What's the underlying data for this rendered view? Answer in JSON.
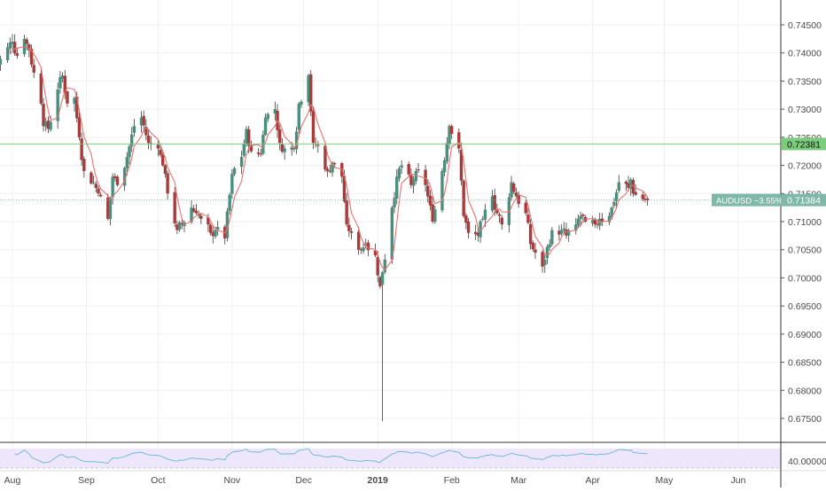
{
  "symbol": "AUDUSD",
  "colors": {
    "up": "#4a8f7e",
    "down": "#a93a3a",
    "ma": "#e9726f",
    "horizontal_line": "#7dcc7d",
    "current_price_line": "#7fb7a9",
    "rsi_line": "#66b7d6",
    "rsi_band": "#eee6fb",
    "grid": "#f0f0f0",
    "axis_text": "#4a4a4a"
  },
  "price_axis": {
    "labels": [
      "0.74500",
      "0.74000",
      "0.73500",
      "0.73000",
      "0.72500",
      "0.72000",
      "0.71500",
      "0.71000",
      "0.70500",
      "0.70000",
      "0.69500",
      "0.69000",
      "0.68500",
      "0.68000",
      "0.67500"
    ]
  },
  "horizontal_line": {
    "price": 0.72381,
    "label": "0.72381"
  },
  "current_price": {
    "price": 0.71384,
    "change_label": "AUDUSD −3.55%",
    "price_label": "0.71384"
  },
  "rsi": {
    "axis_label": "40.00000"
  },
  "time_axis": {
    "labels": [
      "Aug",
      "Sep",
      "Oct",
      "Nov",
      "Dec",
      "2019",
      "Feb",
      "Mar",
      "Apr",
      "May",
      "Jun"
    ],
    "bold_labels": [
      "2019"
    ]
  },
  "chart_data": {
    "type": "candlestick",
    "title": "",
    "symbol": "AUDUSD",
    "timeframe": "daily",
    "x_range": [
      "2018-08-01",
      "2019-06-10"
    ],
    "y_range": [
      0.6705,
      0.7485
    ],
    "month_ticks": [
      {
        "label": "Aug",
        "date": "2018-08-01"
      },
      {
        "label": "Sep",
        "date": "2018-09-01"
      },
      {
        "label": "Oct",
        "date": "2018-10-01"
      },
      {
        "label": "Nov",
        "date": "2018-11-01"
      },
      {
        "label": "Dec",
        "date": "2018-12-01"
      },
      {
        "label": "2019",
        "date": "2019-01-01"
      },
      {
        "label": "Feb",
        "date": "2019-02-01"
      },
      {
        "label": "Mar",
        "date": "2019-03-01"
      },
      {
        "label": "Apr",
        "date": "2019-04-01"
      },
      {
        "label": "May",
        "date": "2019-05-01"
      },
      {
        "label": "Jun",
        "date": "2019-06-01"
      }
    ],
    "close_path": [
      [
        "2018-07-24",
        0.74
      ],
      [
        "2018-07-26",
        0.738
      ],
      [
        "2018-07-30",
        0.741
      ],
      [
        "2018-08-01",
        0.742
      ],
      [
        "2018-08-03",
        0.7395
      ],
      [
        "2018-08-06",
        0.7425
      ],
      [
        "2018-08-08",
        0.7405
      ],
      [
        "2018-08-10",
        0.7365
      ],
      [
        "2018-08-13",
        0.731
      ],
      [
        "2018-08-14",
        0.727
      ],
      [
        "2018-08-16",
        0.7265
      ],
      [
        "2018-08-20",
        0.7335
      ],
      [
        "2018-08-22",
        0.736
      ],
      [
        "2018-08-24",
        0.731
      ],
      [
        "2018-08-27",
        0.732
      ],
      [
        "2018-08-29",
        0.725
      ],
      [
        "2018-08-31",
        0.719
      ],
      [
        "2018-09-04",
        0.717
      ],
      [
        "2018-09-06",
        0.715
      ],
      [
        "2018-09-10",
        0.7105
      ],
      [
        "2018-09-12",
        0.718
      ],
      [
        "2018-09-14",
        0.7165
      ],
      [
        "2018-09-18",
        0.7215
      ],
      [
        "2018-09-21",
        0.727
      ],
      [
        "2018-09-24",
        0.7285
      ],
      [
        "2018-09-27",
        0.724
      ],
      [
        "2018-10-01",
        0.723
      ],
      [
        "2018-10-03",
        0.72
      ],
      [
        "2018-10-05",
        0.715
      ],
      [
        "2018-10-09",
        0.7085
      ],
      [
        "2018-10-11",
        0.7095
      ],
      [
        "2018-10-15",
        0.7125
      ],
      [
        "2018-10-17",
        0.7115
      ],
      [
        "2018-10-19",
        0.7105
      ],
      [
        "2018-10-23",
        0.708
      ],
      [
        "2018-10-25",
        0.7085
      ],
      [
        "2018-10-29",
        0.707
      ],
      [
        "2018-11-01",
        0.7185
      ],
      [
        "2018-11-05",
        0.7215
      ],
      [
        "2018-11-07",
        0.7265
      ],
      [
        "2018-11-09",
        0.7225
      ],
      [
        "2018-11-13",
        0.722
      ],
      [
        "2018-11-15",
        0.7285
      ],
      [
        "2018-11-19",
        0.73
      ],
      [
        "2018-11-21",
        0.724
      ],
      [
        "2018-11-23",
        0.723
      ],
      [
        "2018-11-27",
        0.723
      ],
      [
        "2018-11-29",
        0.731
      ],
      [
        "2018-12-03",
        0.736
      ],
      [
        "2018-12-05",
        0.724
      ],
      [
        "2018-12-07",
        0.7235
      ],
      [
        "2018-12-11",
        0.719
      ],
      [
        "2018-12-13",
        0.7205
      ],
      [
        "2018-12-17",
        0.718
      ],
      [
        "2018-12-19",
        0.7095
      ],
      [
        "2018-12-21",
        0.708
      ],
      [
        "2018-12-24",
        0.705
      ],
      [
        "2018-12-27",
        0.706
      ],
      [
        "2018-12-31",
        0.704
      ],
      [
        "2019-01-02",
        0.6985
      ],
      [
        "2019-01-03",
        0.701
      ],
      [
        "2019-01-07",
        0.7125
      ],
      [
        "2019-01-09",
        0.718
      ],
      [
        "2019-01-11",
        0.72
      ],
      [
        "2019-01-15",
        0.7165
      ],
      [
        "2019-01-17",
        0.719
      ],
      [
        "2019-01-21",
        0.7165
      ],
      [
        "2019-01-24",
        0.71
      ],
      [
        "2019-01-28",
        0.719
      ],
      [
        "2019-01-31",
        0.727
      ],
      [
        "2019-02-04",
        0.723
      ],
      [
        "2019-02-06",
        0.711
      ],
      [
        "2019-02-08",
        0.708
      ],
      [
        "2019-02-12",
        0.7075
      ],
      [
        "2019-02-14",
        0.7105
      ],
      [
        "2019-02-18",
        0.7145
      ],
      [
        "2019-02-20",
        0.7115
      ],
      [
        "2019-02-22",
        0.7095
      ],
      [
        "2019-02-26",
        0.717
      ],
      [
        "2019-02-28",
        0.7145
      ],
      [
        "2019-03-04",
        0.7115
      ],
      [
        "2019-03-06",
        0.706
      ],
      [
        "2019-03-08",
        0.7045
      ],
      [
        "2019-03-11",
        0.702
      ],
      [
        "2019-03-13",
        0.7055
      ],
      [
        "2019-03-15",
        0.7085
      ],
      [
        "2019-03-19",
        0.7085
      ],
      [
        "2019-03-21",
        0.7075
      ],
      [
        "2019-03-25",
        0.7095
      ],
      [
        "2019-03-27",
        0.711
      ],
      [
        "2019-03-29",
        0.71
      ],
      [
        "2019-04-02",
        0.7095
      ],
      [
        "2019-04-04",
        0.7105
      ],
      [
        "2019-04-08",
        0.711
      ],
      [
        "2019-04-10",
        0.7135
      ],
      [
        "2019-04-12",
        0.717
      ],
      [
        "2019-04-16",
        0.716
      ],
      [
        "2019-04-17",
        0.7175
      ],
      [
        "2019-04-18",
        0.715
      ],
      [
        "2019-04-22",
        0.714
      ],
      [
        "2019-04-24",
        0.7138
      ]
    ],
    "extreme_wicks": [
      {
        "date": "2019-01-03",
        "low": 0.6745,
        "note": "flash crash"
      }
    ],
    "moving_average": {
      "label": "",
      "note": "short-period MA drawn in red"
    },
    "horizontal_levels": [
      0.72381
    ],
    "last_price": 0.71384,
    "change_percent": -3.55,
    "rsi_panel": {
      "reference_level": 40.0
    }
  }
}
